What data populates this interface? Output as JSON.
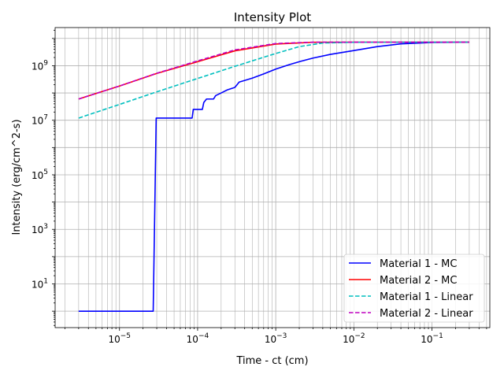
{
  "chart_data": {
    "type": "line",
    "title": "Intensity Plot",
    "xlabel": "Time - ct (cm)",
    "ylabel": "Intensity (erg/cm^2-s)",
    "x_scale": "log",
    "y_scale": "log",
    "xlim": [
      1.5e-06,
      0.55
    ],
    "ylim": [
      0.25,
      25000000000.0
    ],
    "grid": true,
    "legend_position": "lower right",
    "x_tick_exponents": [
      -5,
      -4,
      -3,
      -2,
      -1
    ],
    "y_tick_exponents": [
      1,
      3,
      5,
      7,
      9
    ],
    "series": [
      {
        "name": "Material 1 - MC",
        "color": "#0000ff",
        "dash": "solid",
        "points": [
          [
            3e-06,
            1
          ],
          [
            2.7e-05,
            1
          ],
          [
            2.95e-05,
            12000000.0
          ],
          [
            8.5e-05,
            12000000.0
          ],
          [
            8.8e-05,
            25000000.0
          ],
          [
            0.000115,
            25000000.0
          ],
          [
            0.00012,
            45000000.0
          ],
          [
            0.00013,
            60000000.0
          ],
          [
            0.00016,
            60000000.0
          ],
          [
            0.00017,
            80000000.0
          ],
          [
            0.0002,
            100000000.0
          ],
          [
            0.00024,
            130000000.0
          ],
          [
            0.0003,
            160000000.0
          ],
          [
            0.00034,
            250000000.0
          ],
          [
            0.0005,
            350000000.0
          ],
          [
            0.0007,
            500000000.0
          ],
          [
            0.001,
            750000000.0
          ],
          [
            0.0015,
            1100000000.0
          ],
          [
            0.002,
            1400000000.0
          ],
          [
            0.003,
            1900000000.0
          ],
          [
            0.005,
            2600000000.0
          ],
          [
            0.01,
            3600000000.0
          ],
          [
            0.02,
            5000000000.0
          ],
          [
            0.04,
            6300000000.0
          ],
          [
            0.1,
            7100000000.0
          ],
          [
            0.3,
            7300000000.0
          ]
        ]
      },
      {
        "name": "Material 2 - MC",
        "color": "#ff0000",
        "dash": "solid",
        "points": [
          [
            3e-06,
            60000000.0
          ],
          [
            1e-05,
            180000000.0
          ],
          [
            3e-05,
            520000000.0
          ],
          [
            0.0001,
            1400000000.0
          ],
          [
            0.0003,
            3500000000.0
          ],
          [
            0.001,
            6200000000.0
          ],
          [
            0.003,
            7200000000.0
          ],
          [
            0.01,
            7300000000.0
          ],
          [
            0.1,
            7300000000.0
          ],
          [
            0.3,
            7300000000.0
          ]
        ]
      },
      {
        "name": "Material 1 - Linear",
        "color": "#00bfbf",
        "dash": "dashed",
        "points": [
          [
            3e-06,
            12000000.0
          ],
          [
            1e-05,
            38000000.0
          ],
          [
            3e-05,
            110000000.0
          ],
          [
            0.0001,
            340000000.0
          ],
          [
            0.0003,
            950000000.0
          ],
          [
            0.001,
            2800000000.0
          ],
          [
            0.002,
            5000000000.0
          ],
          [
            0.004,
            6800000000.0
          ],
          [
            0.01,
            7200000000.0
          ],
          [
            0.1,
            7300000000.0
          ],
          [
            0.3,
            7300000000.0
          ]
        ]
      },
      {
        "name": "Material 2 - Linear",
        "color": "#bf00bf",
        "dash": "dashed",
        "points": [
          [
            3e-06,
            60000000.0
          ],
          [
            1e-05,
            180000000.0
          ],
          [
            3e-05,
            530000000.0
          ],
          [
            0.0001,
            1500000000.0
          ],
          [
            0.0003,
            3800000000.0
          ],
          [
            0.001,
            6500000000.0
          ],
          [
            0.003,
            7300000000.0
          ],
          [
            0.01,
            7300000000.0
          ],
          [
            0.1,
            7300000000.0
          ],
          [
            0.3,
            7300000000.0
          ]
        ]
      }
    ]
  }
}
